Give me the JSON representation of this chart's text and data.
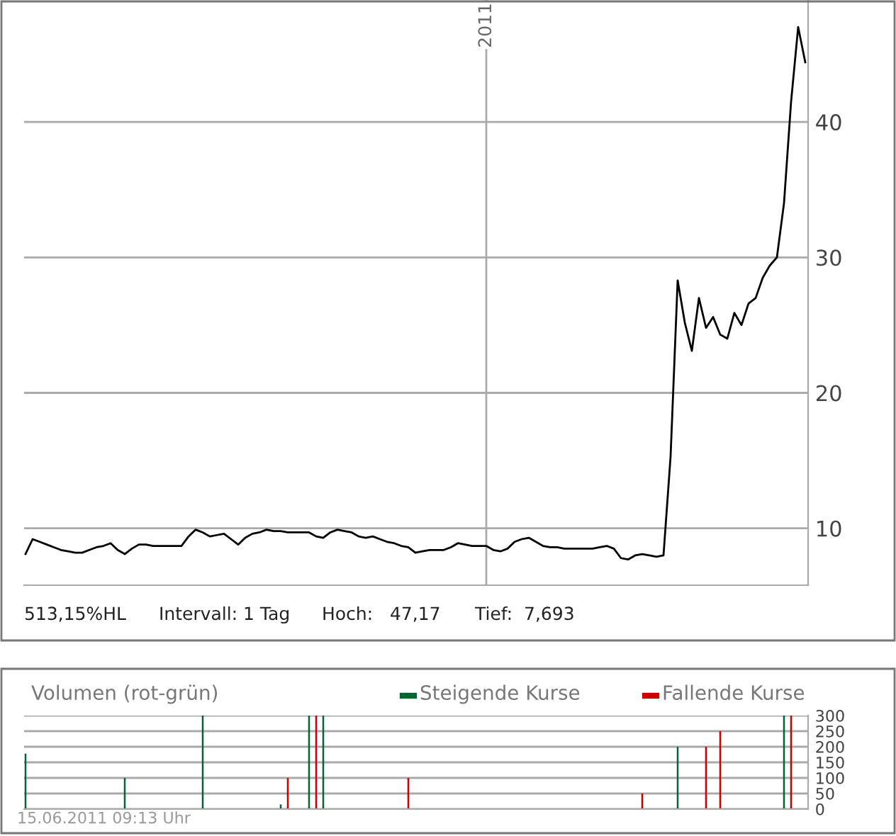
{
  "chart_data": [
    {
      "type": "line",
      "ylim": [
        5.8,
        49
      ],
      "yticks": [
        10,
        20,
        30,
        40
      ],
      "grid": true,
      "legend": false,
      "categories": [
        null,
        null,
        null,
        null,
        null,
        null,
        null,
        null,
        null,
        null,
        null,
        null,
        null,
        null,
        null,
        null,
        null,
        null,
        null,
        null,
        null,
        null,
        null,
        null,
        null,
        null,
        null,
        null,
        null,
        null,
        null,
        null,
        null,
        null,
        null,
        null,
        null,
        null,
        null,
        null,
        null,
        null,
        null,
        null,
        null,
        null,
        null,
        null,
        null,
        null,
        null,
        null,
        null,
        null,
        null,
        null,
        null,
        null,
        null,
        null,
        null,
        null,
        null,
        null,
        null,
        "2011",
        null,
        null,
        null,
        null,
        null,
        null,
        null,
        null,
        null,
        null,
        null,
        null,
        null,
        null,
        null,
        null,
        null,
        null,
        null,
        null,
        null,
        null,
        null,
        null,
        null,
        null,
        null,
        null,
        null,
        null,
        null,
        null,
        null,
        null,
        null,
        null,
        null,
        null,
        null,
        null,
        null,
        null,
        null,
        null,
        null
      ],
      "annotations": [
        "513,15%HL",
        "Intervall: 1 Tag",
        "Hoch:   47,17",
        "Tief:  7,693"
      ],
      "series": [
        {
          "color": "#000000",
          "values": [
            8.1,
            9.2,
            9.0,
            8.8,
            8.6,
            8.4,
            8.3,
            8.2,
            8.2,
            8.4,
            8.6,
            8.7,
            8.9,
            8.4,
            8.1,
            8.5,
            8.8,
            8.8,
            8.7,
            8.7,
            8.7,
            8.7,
            8.7,
            9.4,
            9.9,
            9.7,
            9.4,
            9.5,
            9.6,
            9.2,
            8.8,
            9.3,
            9.6,
            9.7,
            9.9,
            9.8,
            9.8,
            9.7,
            9.7,
            9.7,
            9.7,
            9.4,
            9.3,
            9.7,
            9.9,
            9.8,
            9.7,
            9.4,
            9.3,
            9.4,
            9.2,
            9.0,
            8.9,
            8.7,
            8.6,
            8.2,
            8.3,
            8.4,
            8.4,
            8.4,
            8.6,
            8.9,
            8.8,
            8.7,
            8.7,
            8.7,
            8.4,
            8.3,
            8.5,
            9.0,
            9.2,
            9.3,
            9.0,
            8.7,
            8.6,
            8.6,
            8.5,
            8.5,
            8.5,
            8.5,
            8.5,
            8.6,
            8.7,
            8.5,
            7.8,
            7.7,
            8.0,
            8.1,
            8.0,
            7.9,
            8.0,
            15.3,
            28.3,
            25.2,
            23.1,
            27.0,
            24.8,
            25.6,
            24.3,
            24.0,
            25.9,
            25.0,
            26.6,
            27.0,
            28.5,
            29.4,
            30.0,
            34.0,
            41.5,
            47.0,
            44.4
          ]
        }
      ]
    },
    {
      "type": "bar",
      "title": "Volumen (rot-grün)",
      "ylim": [
        0,
        300
      ],
      "yticks": [
        0,
        50,
        100,
        150,
        200,
        250,
        300
      ],
      "grid": "y",
      "legend": "top",
      "categories": [
        null,
        null,
        null,
        null,
        null,
        null,
        null,
        null,
        null,
        null,
        null,
        null,
        null,
        null,
        null,
        null,
        null,
        null,
        null,
        null,
        null,
        null,
        null,
        null,
        null,
        null,
        null,
        null,
        null,
        null,
        null,
        null,
        null,
        null,
        null,
        null,
        null,
        null,
        null,
        null,
        null,
        null,
        null,
        null,
        null,
        null,
        null,
        null,
        null,
        null,
        null,
        null,
        null,
        null,
        null,
        null,
        null,
        null,
        null,
        null,
        null,
        null,
        null,
        null,
        null,
        null,
        null,
        null,
        null,
        null,
        null,
        null,
        null,
        null,
        null,
        null,
        null,
        null,
        null,
        null,
        null,
        null,
        null,
        null,
        null,
        null,
        null,
        null,
        null,
        null,
        null,
        null,
        null,
        null,
        null,
        null,
        null,
        null,
        null,
        null,
        null,
        null,
        null,
        null,
        null,
        null,
        null,
        null,
        null,
        null,
        null
      ],
      "annotations": [
        "15.06.2011 09:13 Uhr"
      ],
      "series": [
        {
          "name": "Steigende Kurse",
          "color": "#006633",
          "values": [
            178,
            null,
            null,
            null,
            null,
            null,
            null,
            null,
            null,
            null,
            null,
            null,
            null,
            null,
            100,
            null,
            null,
            null,
            null,
            null,
            null,
            null,
            null,
            null,
            null,
            300,
            null,
            null,
            null,
            null,
            null,
            null,
            null,
            null,
            null,
            null,
            15,
            null,
            null,
            null,
            300,
            null,
            300,
            null,
            null,
            null,
            null,
            null,
            null,
            null,
            null,
            null,
            null,
            null,
            null,
            null,
            null,
            null,
            null,
            null,
            null,
            null,
            null,
            null,
            null,
            null,
            null,
            null,
            null,
            null,
            null,
            null,
            null,
            null,
            null,
            null,
            null,
            null,
            null,
            null,
            null,
            null,
            null,
            null,
            null,
            null,
            null,
            null,
            null,
            null,
            null,
            null,
            200,
            null,
            null,
            null,
            null,
            null,
            null,
            null,
            null,
            null,
            null,
            null,
            null,
            null,
            null,
            300,
            null,
            null,
            null
          ]
        },
        {
          "name": "Fallende Kurse",
          "color": "#cc0000",
          "values": [
            null,
            null,
            null,
            null,
            null,
            null,
            null,
            null,
            null,
            null,
            null,
            null,
            null,
            null,
            null,
            null,
            null,
            null,
            null,
            null,
            null,
            null,
            null,
            null,
            null,
            null,
            null,
            null,
            null,
            null,
            null,
            null,
            null,
            null,
            null,
            null,
            null,
            100,
            null,
            null,
            null,
            300,
            null,
            null,
            null,
            null,
            null,
            null,
            null,
            null,
            null,
            null,
            null,
            null,
            100,
            null,
            null,
            null,
            null,
            null,
            null,
            null,
            null,
            null,
            null,
            null,
            null,
            null,
            null,
            null,
            null,
            null,
            null,
            null,
            null,
            null,
            null,
            null,
            null,
            null,
            null,
            null,
            null,
            null,
            null,
            null,
            null,
            50,
            null,
            null,
            null,
            null,
            null,
            null,
            null,
            null,
            200,
            null,
            250,
            null,
            null,
            null,
            null,
            null,
            null,
            null,
            null,
            null,
            300,
            null,
            null
          ]
        }
      ]
    }
  ]
}
